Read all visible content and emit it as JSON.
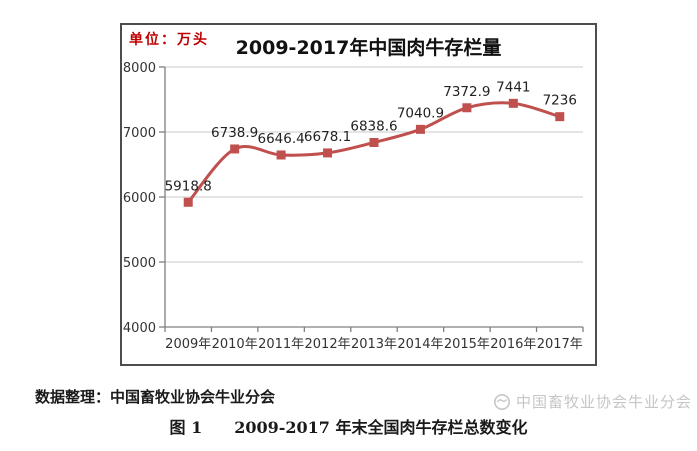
{
  "chart_data": {
    "type": "line",
    "title": "2009-2017年中国肉牛存栏量",
    "unit_label": "单位：万头",
    "categories": [
      "2009年",
      "2010年",
      "2011年",
      "2012年",
      "2013年",
      "2014年",
      "2015年",
      "2016年",
      "2017年"
    ],
    "values": [
      5918.8,
      6738.9,
      6646.4,
      6678.1,
      6838.6,
      7040.9,
      7372.9,
      7441,
      7236
    ],
    "xlabel": "",
    "ylabel": "",
    "ylim": [
      4000,
      8000
    ],
    "yticks": [
      4000,
      5000,
      6000,
      7000,
      8000
    ],
    "grid": true,
    "legend": "none",
    "marker": "square",
    "smooth_line": true,
    "data_labels": true,
    "colors": {
      "line": "#C0504D",
      "grid": "#c9c9c9",
      "axis": "#808080",
      "unit_label": "#c00000"
    }
  },
  "footer": {
    "source_note": "数据整理：中国畜牧业协会牛业分会",
    "watermark_text": "中国畜牧业协会牛业分会",
    "caption": "图 1　　2009-2017 年末全国肉牛存栏总数变化"
  }
}
